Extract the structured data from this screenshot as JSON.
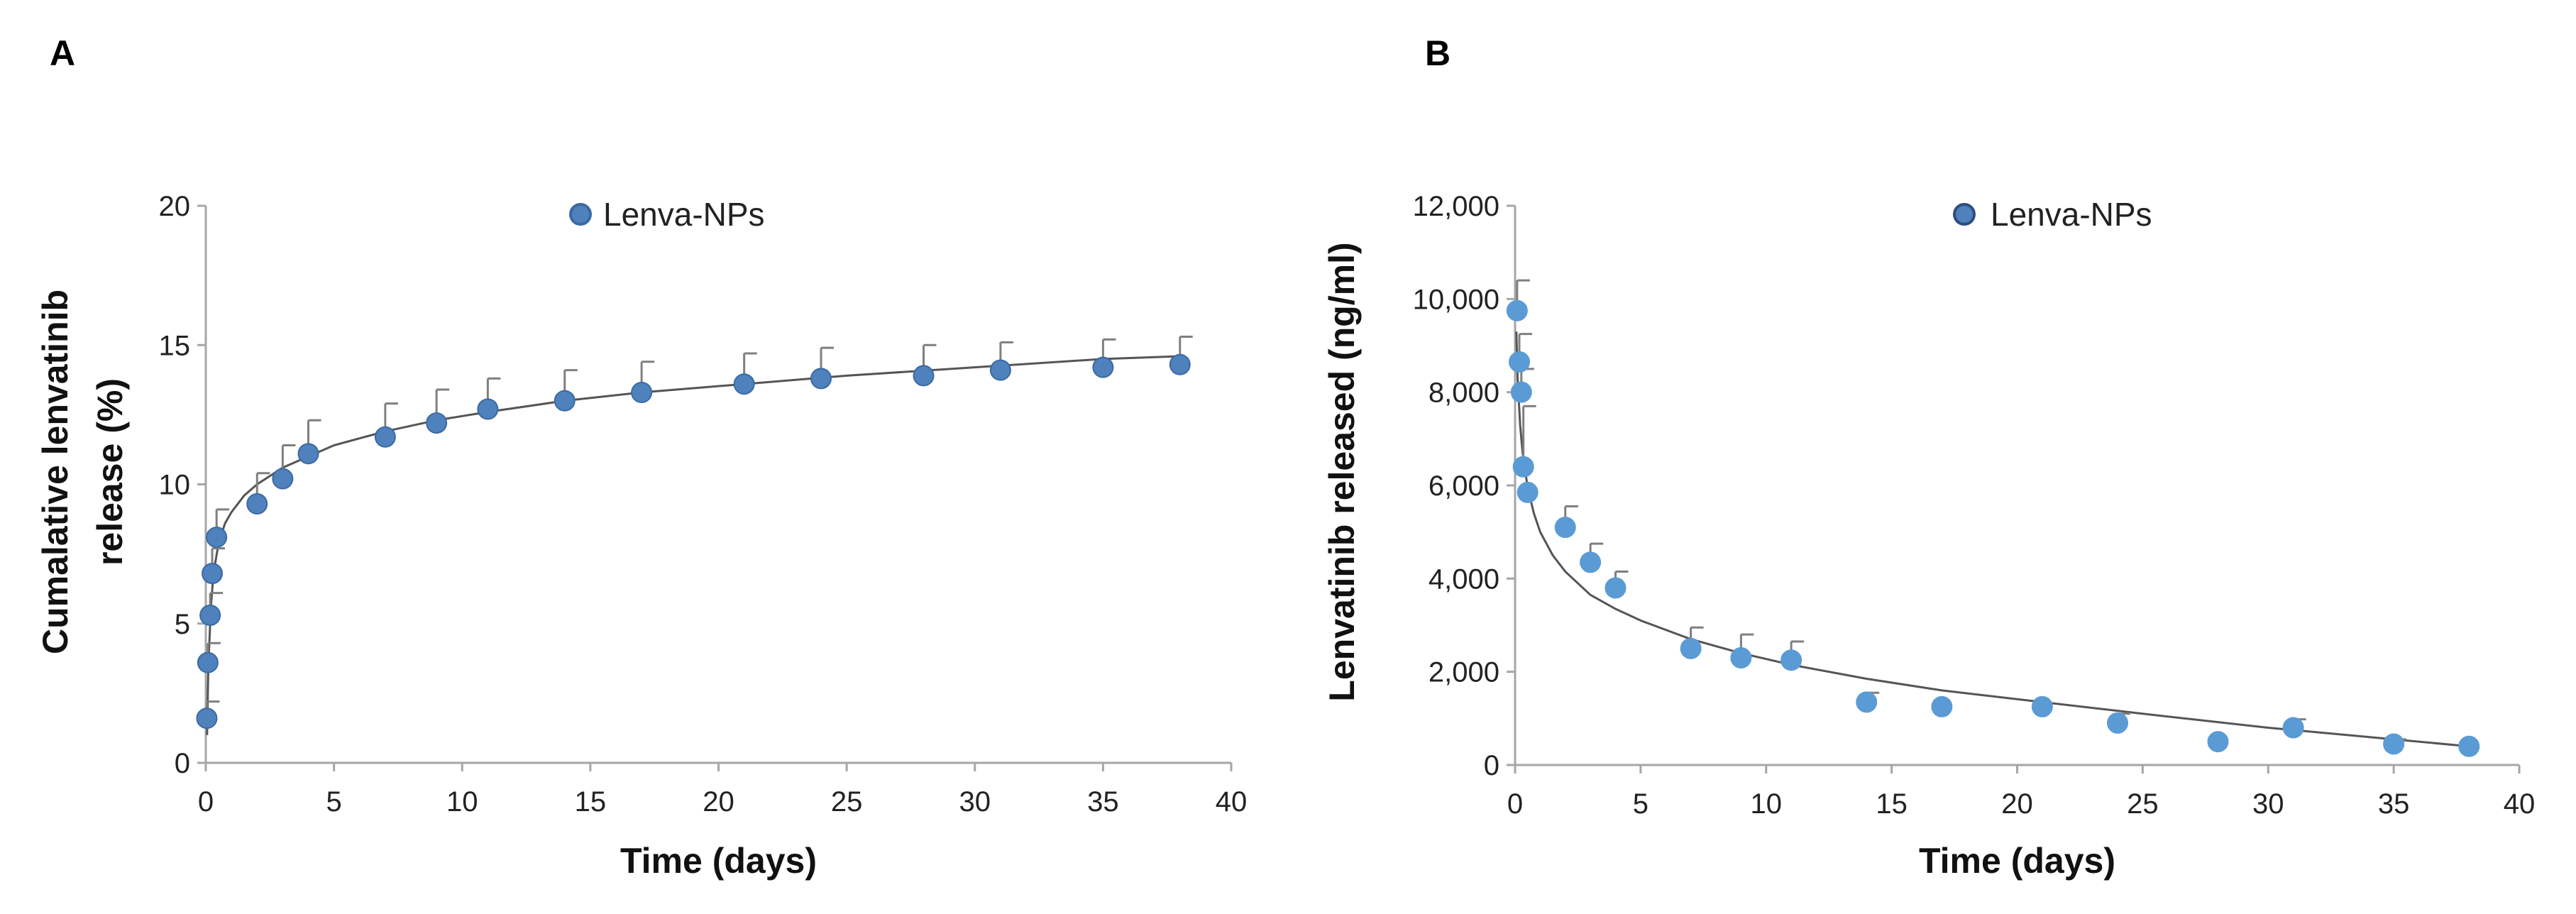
{
  "chart_data": [
    {
      "panel_label": "A",
      "type": "scatter",
      "legend": "Lenva-NPs",
      "legend_position": "top-center",
      "xlabel": "Time (days)",
      "ylabel_lines": [
        "Cumalative lenvatinib",
        "release (%)"
      ],
      "xlim": [
        0,
        40
      ],
      "ylim": [
        0,
        20
      ],
      "xticks": [
        0,
        5,
        10,
        15,
        20,
        25,
        30,
        35,
        40
      ],
      "yticks": [
        0,
        5,
        10,
        15,
        20
      ],
      "xtick_labels": [
        "0",
        "5",
        "10",
        "15",
        "20",
        "25",
        "30",
        "35",
        "40"
      ],
      "ytick_labels": [
        "0",
        "5",
        "10",
        "15",
        "20"
      ],
      "colors": {
        "marker": "#4f81bd",
        "marker_edge": "#3b6aa3",
        "fit": "#555555",
        "error": "#7f7f7f"
      },
      "series": [
        {
          "name": "Lenva-NPs",
          "x": [
            0.04,
            0.08,
            0.17,
            0.25,
            0.42,
            2,
            3,
            4,
            7,
            9,
            11,
            14,
            17,
            21,
            24,
            28,
            31,
            35,
            38
          ],
          "y": [
            1.6,
            3.6,
            5.3,
            6.8,
            8.1,
            9.3,
            10.2,
            11.1,
            11.7,
            12.2,
            12.7,
            13.0,
            13.3,
            13.6,
            13.8,
            13.9,
            14.1,
            14.2,
            14.3
          ],
          "error": [
            0.6,
            0.7,
            0.8,
            0.9,
            1.0,
            1.1,
            1.2,
            1.2,
            1.2,
            1.2,
            1.1,
            1.1,
            1.1,
            1.1,
            1.1,
            1.1,
            1.0,
            1.0,
            1.0
          ]
        }
      ],
      "fit": {
        "x": [
          0.05,
          0.1,
          0.2,
          0.3,
          0.5,
          0.75,
          1,
          1.5,
          2,
          3,
          4,
          5,
          7,
          9,
          11,
          14,
          17,
          21,
          25,
          30,
          35,
          38
        ],
        "y": [
          1.0,
          3.5,
          5.6,
          6.8,
          7.9,
          8.6,
          9.0,
          9.6,
          10.0,
          10.6,
          11.0,
          11.4,
          11.9,
          12.3,
          12.6,
          13.0,
          13.3,
          13.6,
          13.9,
          14.2,
          14.5,
          14.6
        ]
      }
    },
    {
      "panel_label": "B",
      "type": "scatter",
      "legend": "Lenva-NPs",
      "legend_position": "top-center",
      "xlabel": "Time (days)",
      "ylabel_lines": [
        "Lenvatinib released (ng/ml)"
      ],
      "xlim": [
        0,
        40
      ],
      "ylim": [
        0,
        12000
      ],
      "xticks": [
        0,
        5,
        10,
        15,
        20,
        25,
        30,
        35,
        40
      ],
      "yticks": [
        0,
        2000,
        4000,
        6000,
        8000,
        10000,
        12000
      ],
      "xtick_labels": [
        "0",
        "5",
        "10",
        "15",
        "20",
        "25",
        "30",
        "35",
        "40"
      ],
      "ytick_labels": [
        "0",
        "2,000",
        "4,000",
        "6,000",
        "8,000",
        "10,000",
        "12,000"
      ],
      "colors": {
        "marker": "#5b9bd5",
        "marker_edge": "#5b9bd5",
        "legend_marker": "#4f81bd",
        "legend_edge": "#2f4f7f",
        "fit": "#555555",
        "error": "#7f7f7f"
      },
      "series": [
        {
          "name": "Lenva-NPs",
          "x": [
            0.08,
            0.17,
            0.25,
            0.33,
            0.5,
            2,
            3,
            4,
            7,
            9,
            11,
            14,
            17,
            21,
            24,
            28,
            31,
            35,
            38
          ],
          "y": [
            9750,
            8650,
            8000,
            6400,
            5850,
            5100,
            4350,
            3800,
            2500,
            2300,
            2250,
            1350,
            1250,
            1250,
            900,
            500,
            800,
            450,
            400
          ],
          "error": [
            650,
            600,
            500,
            1300,
            0,
            450,
            400,
            350,
            450,
            500,
            400,
            200,
            0,
            0,
            200,
            0,
            180,
            100,
            0
          ]
        }
      ],
      "fit": {
        "x": [
          0.05,
          0.1,
          0.2,
          0.3,
          0.5,
          0.75,
          1,
          1.5,
          2,
          3,
          4,
          5,
          7,
          9,
          11,
          14,
          17,
          21,
          25,
          30,
          35,
          38
        ],
        "y": [
          9300,
          8300,
          7300,
          6700,
          5950,
          5400,
          5000,
          4500,
          4150,
          3650,
          3350,
          3100,
          2700,
          2400,
          2150,
          1850,
          1600,
          1350,
          1100,
          800,
          550,
          400
        ]
      }
    }
  ]
}
